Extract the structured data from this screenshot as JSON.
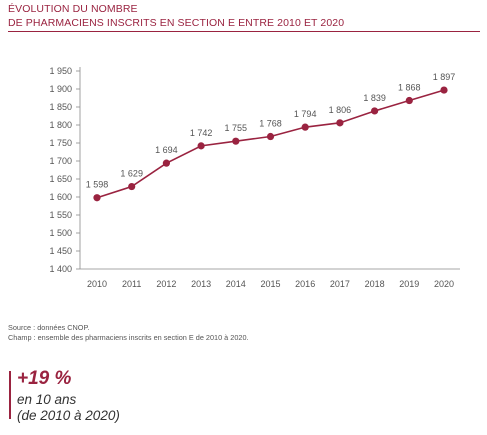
{
  "header": {
    "title_line1": "ÉVOLUTION DU NOMBRE",
    "title_line2": "DE PHARMACIENS INSCRITS EN SECTION E ENTRE 2010 ET 2020"
  },
  "chart_data": {
    "type": "line",
    "x": [
      "2010",
      "2011",
      "2012",
      "2013",
      "2014",
      "2015",
      "2016",
      "2017",
      "2018",
      "2019",
      "2020"
    ],
    "values": [
      1598,
      1629,
      1694,
      1742,
      1755,
      1768,
      1794,
      1806,
      1839,
      1868,
      1897
    ],
    "value_labels": [
      "1 598",
      "1 629",
      "1 694",
      "1 742",
      "1 755",
      "1 768",
      "1 794",
      "1 806",
      "1 839",
      "1 868",
      "1 897"
    ],
    "ylim": [
      1400,
      1950
    ],
    "yticks": [
      1400,
      1450,
      1500,
      1550,
      1600,
      1650,
      1700,
      1750,
      1800,
      1850,
      1900,
      1950
    ],
    "ytick_labels": [
      "1 400",
      "1 450",
      "1 500",
      "1 550",
      "1 600",
      "1 650",
      "1 700",
      "1 750",
      "1 800",
      "1 850",
      "1 900",
      "1 950"
    ],
    "grid": false,
    "xlabel": "",
    "ylabel": "",
    "line_color": "#9a2340"
  },
  "footer": {
    "source": "Source : données CNOP.",
    "scope": "Champ : ensemble des pharmaciens inscrits en section E de 2010 à 2020."
  },
  "kpi": {
    "value": "+19 %",
    "line1": "en 10 ans",
    "line2": "(de 2010 à 2020)"
  },
  "colors": {
    "accent": "#9a2340",
    "text": "#555555"
  }
}
